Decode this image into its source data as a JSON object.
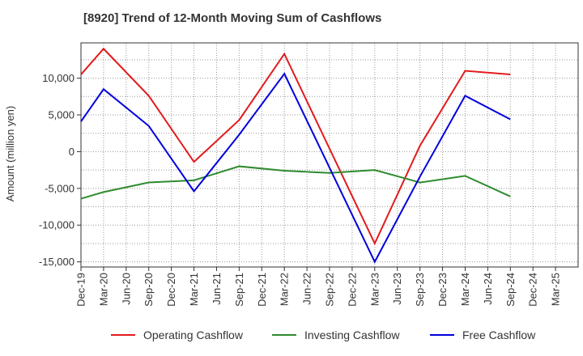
{
  "chart_data": {
    "type": "line",
    "title": "[8920]  Trend of 12-Month Moving Sum of Cashflows",
    "ylabel": "Amount (million yen)",
    "xlabel": "",
    "ylim": [
      -15700,
      14800
    ],
    "yticks": [
      10000,
      5000,
      0,
      -5000,
      -10000,
      -15000
    ],
    "ytick_labels": [
      "10,000",
      "5,000",
      "0",
      "-5,000",
      "-10,000",
      "-15,000"
    ],
    "x": [
      "Dec-19",
      "Mar-20",
      "Jun-20",
      "Sep-20",
      "Dec-20",
      "Mar-21",
      "Jun-21",
      "Sep-21",
      "Dec-21",
      "Mar-22",
      "Jun-22",
      "Sep-22",
      "Dec-22",
      "Mar-23",
      "Jun-23",
      "Sep-23",
      "Dec-23",
      "Mar-24",
      "Jun-24",
      "Sep-24",
      "Dec-24",
      "Mar-25"
    ],
    "grid": true,
    "legend_position": "bottom",
    "series": [
      {
        "name": "Operating Cashflow",
        "color": "#e31a1c",
        "points": [
          [
            "Dec-19",
            10500
          ],
          [
            "Mar-20",
            14000
          ],
          [
            "Sep-20",
            7600
          ],
          [
            "Mar-21",
            -1400
          ],
          [
            "Sep-21",
            4300
          ],
          [
            "Mar-22",
            13300
          ],
          [
            "Mar-23",
            -12500
          ],
          [
            "Sep-23",
            800
          ],
          [
            "Mar-24",
            11000
          ],
          [
            "Sep-24",
            10500
          ]
        ]
      },
      {
        "name": "Investing Cashflow",
        "color": "#2e8b2e",
        "points": [
          [
            "Dec-19",
            -6400
          ],
          [
            "Mar-20",
            -5500
          ],
          [
            "Sep-20",
            -4200
          ],
          [
            "Mar-21",
            -3900
          ],
          [
            "Sep-21",
            -2000
          ],
          [
            "Mar-22",
            -2600
          ],
          [
            "Sep-22",
            -2900
          ],
          [
            "Mar-23",
            -2500
          ],
          [
            "Sep-23",
            -4200
          ],
          [
            "Mar-24",
            -3300
          ],
          [
            "Sep-24",
            -6100
          ]
        ]
      },
      {
        "name": "Free Cashflow",
        "color": "#0000dd",
        "points": [
          [
            "Dec-19",
            4100
          ],
          [
            "Mar-20",
            8500
          ],
          [
            "Sep-20",
            3500
          ],
          [
            "Mar-21",
            -5400
          ],
          [
            "Sep-21",
            2300
          ],
          [
            "Mar-22",
            10600
          ],
          [
            "Mar-23",
            -15000
          ],
          [
            "Sep-23",
            -3400
          ],
          [
            "Mar-24",
            7600
          ],
          [
            "Sep-24",
            4400
          ]
        ]
      }
    ]
  }
}
